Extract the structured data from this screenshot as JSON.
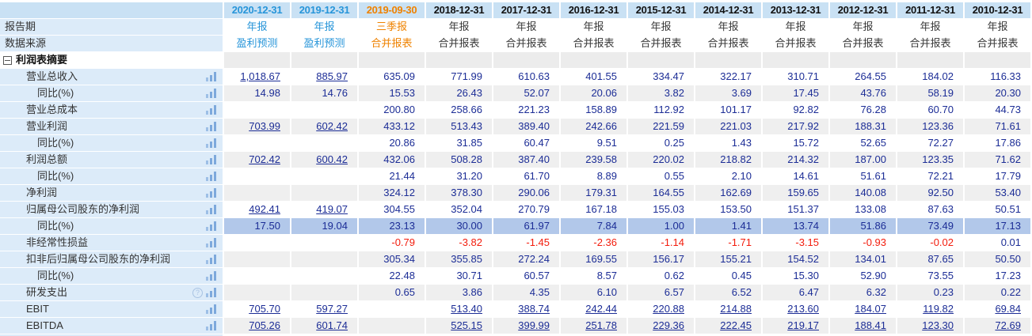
{
  "table": {
    "title": "financial-income-statement-summary",
    "corner_label": "",
    "meta_labels": {
      "period": "报告期",
      "source": "数据来源"
    },
    "section": {
      "label": "利润表摘要"
    },
    "columns": [
      {
        "date": "2020-12-31",
        "period": "年报",
        "source": "盈利预测",
        "accent": "blue"
      },
      {
        "date": "2019-12-31",
        "period": "年报",
        "source": "盈利预测",
        "accent": "blue"
      },
      {
        "date": "2019-09-30",
        "period": "三季报",
        "source": "合并报表",
        "accent": "orange"
      },
      {
        "date": "2018-12-31",
        "period": "年报",
        "source": "合并报表",
        "accent": "black"
      },
      {
        "date": "2017-12-31",
        "period": "年报",
        "source": "合并报表",
        "accent": "black"
      },
      {
        "date": "2016-12-31",
        "period": "年报",
        "source": "合并报表",
        "accent": "black"
      },
      {
        "date": "2015-12-31",
        "period": "年报",
        "source": "合并报表",
        "accent": "black"
      },
      {
        "date": "2014-12-31",
        "period": "年报",
        "source": "合并报表",
        "accent": "black"
      },
      {
        "date": "2013-12-31",
        "period": "年报",
        "source": "合并报表",
        "accent": "black"
      },
      {
        "date": "2012-12-31",
        "period": "年报",
        "source": "合并报表",
        "accent": "black"
      },
      {
        "date": "2011-12-31",
        "period": "年报",
        "source": "合并报表",
        "accent": "black"
      },
      {
        "date": "2010-12-31",
        "period": "年报",
        "source": "合并报表",
        "accent": "black"
      }
    ],
    "rows": [
      {
        "label": "营业总收入",
        "indent": 1,
        "icons": [
          "bar"
        ],
        "link_cols": [
          0,
          1
        ],
        "values": [
          "1,018.67",
          "885.97",
          "635.09",
          "771.99",
          "610.63",
          "401.55",
          "334.47",
          "322.17",
          "310.71",
          "264.55",
          "184.02",
          "116.33"
        ]
      },
      {
        "label": "同比(%)",
        "indent": 2,
        "icons": [
          "bar"
        ],
        "link_cols": [],
        "values": [
          "14.98",
          "14.76",
          "15.53",
          "26.43",
          "52.07",
          "20.06",
          "3.82",
          "3.69",
          "17.45",
          "43.76",
          "58.19",
          "20.30"
        ]
      },
      {
        "label": "营业总成本",
        "indent": 1,
        "icons": [
          "bar"
        ],
        "link_cols": [],
        "values": [
          "",
          "",
          "200.80",
          "258.66",
          "221.23",
          "158.89",
          "112.92",
          "101.17",
          "92.82",
          "76.28",
          "60.70",
          "44.73"
        ]
      },
      {
        "label": "营业利润",
        "indent": 1,
        "icons": [
          "bar"
        ],
        "link_cols": [
          0,
          1
        ],
        "values": [
          "703.99",
          "602.42",
          "433.12",
          "513.43",
          "389.40",
          "242.66",
          "221.59",
          "221.03",
          "217.92",
          "188.31",
          "123.36",
          "71.61"
        ]
      },
      {
        "label": "同比(%)",
        "indent": 2,
        "icons": [
          "bar"
        ],
        "link_cols": [],
        "values": [
          "",
          "",
          "20.86",
          "31.85",
          "60.47",
          "9.51",
          "0.25",
          "1.43",
          "15.72",
          "52.65",
          "72.27",
          "17.86"
        ]
      },
      {
        "label": "利润总额",
        "indent": 1,
        "icons": [
          "bar"
        ],
        "link_cols": [
          0,
          1
        ],
        "values": [
          "702.42",
          "600.42",
          "432.06",
          "508.28",
          "387.40",
          "239.58",
          "220.02",
          "218.82",
          "214.32",
          "187.00",
          "123.35",
          "71.62"
        ]
      },
      {
        "label": "同比(%)",
        "indent": 2,
        "icons": [
          "bar"
        ],
        "link_cols": [],
        "values": [
          "",
          "",
          "21.44",
          "31.20",
          "61.70",
          "8.89",
          "0.55",
          "2.10",
          "14.61",
          "51.61",
          "72.21",
          "17.79"
        ]
      },
      {
        "label": "净利润",
        "indent": 1,
        "icons": [
          "bar"
        ],
        "link_cols": [],
        "values": [
          "",
          "",
          "324.12",
          "378.30",
          "290.06",
          "179.31",
          "164.55",
          "162.69",
          "159.65",
          "140.08",
          "92.50",
          "53.40"
        ]
      },
      {
        "label": "归属母公司股东的净利润",
        "indent": 1,
        "icons": [
          "bar"
        ],
        "link_cols": [
          0,
          1
        ],
        "values": [
          "492.41",
          "419.07",
          "304.55",
          "352.04",
          "270.79",
          "167.18",
          "155.03",
          "153.50",
          "151.37",
          "133.08",
          "87.63",
          "50.51"
        ]
      },
      {
        "label": "同比(%)",
        "indent": 2,
        "icons": [
          "bar"
        ],
        "link_cols": [],
        "highlight": true,
        "values": [
          "17.50",
          "19.04",
          "23.13",
          "30.00",
          "61.97",
          "7.84",
          "1.00",
          "1.41",
          "13.74",
          "51.86",
          "73.49",
          "17.13"
        ]
      },
      {
        "label": "非经常性损益",
        "indent": 1,
        "icons": [
          "bar"
        ],
        "link_cols": [],
        "values": [
          "",
          "",
          "-0.79",
          "-3.82",
          "-1.45",
          "-2.36",
          "-1.14",
          "-1.71",
          "-3.15",
          "-0.93",
          "-0.02",
          "0.01"
        ]
      },
      {
        "label": "扣非后归属母公司股东的净利润",
        "indent": 1,
        "icons": [
          "bar"
        ],
        "link_cols": [],
        "values": [
          "",
          "",
          "305.34",
          "355.85",
          "272.24",
          "169.55",
          "156.17",
          "155.21",
          "154.52",
          "134.01",
          "87.65",
          "50.50"
        ]
      },
      {
        "label": "同比(%)",
        "indent": 2,
        "icons": [
          "bar"
        ],
        "link_cols": [],
        "values": [
          "",
          "",
          "22.48",
          "30.71",
          "60.57",
          "8.57",
          "0.62",
          "0.45",
          "15.30",
          "52.90",
          "73.55",
          "17.23"
        ]
      },
      {
        "label": "研发支出",
        "indent": 1,
        "icons": [
          "help",
          "bar"
        ],
        "link_cols": [],
        "values": [
          "",
          "",
          "0.65",
          "3.86",
          "4.35",
          "6.10",
          "6.57",
          "6.52",
          "6.47",
          "6.32",
          "0.23",
          "0.22"
        ]
      },
      {
        "label": "EBIT",
        "indent": 1,
        "icons": [
          "bar"
        ],
        "link_cols": [
          0,
          1,
          3,
          4,
          5,
          6,
          7,
          8,
          9,
          10,
          11
        ],
        "values": [
          "705.70",
          "597.27",
          "",
          "513.40",
          "388.74",
          "242.44",
          "220.88",
          "214.88",
          "213.60",
          "184.07",
          "119.82",
          "69.84"
        ]
      },
      {
        "label": "EBITDA",
        "indent": 1,
        "icons": [
          "bar"
        ],
        "link_cols": [
          0,
          1,
          3,
          4,
          5,
          6,
          7,
          8,
          9,
          10,
          11
        ],
        "values": [
          "705.26",
          "601.74",
          "",
          "525.15",
          "399.99",
          "251.78",
          "229.36",
          "222.45",
          "219.17",
          "188.41",
          "123.30",
          "72.69"
        ]
      }
    ]
  },
  "icons": {
    "bar": "bar-chart-icon",
    "help": "help-icon",
    "collapse": "collapse-section-icon"
  },
  "colors": {
    "header_bg": "#c9e1f4",
    "label_col_bg": "#dcebf9",
    "row_shade": "#efefef",
    "section_cell_bg": "#ececec",
    "highlight_row_bg": "#b2c8ea",
    "value_navy": "#1c2d96",
    "negative_red": "#f31c0c",
    "forecast_blue": "#2795d9",
    "quarter_orange": "#ef8200"
  }
}
